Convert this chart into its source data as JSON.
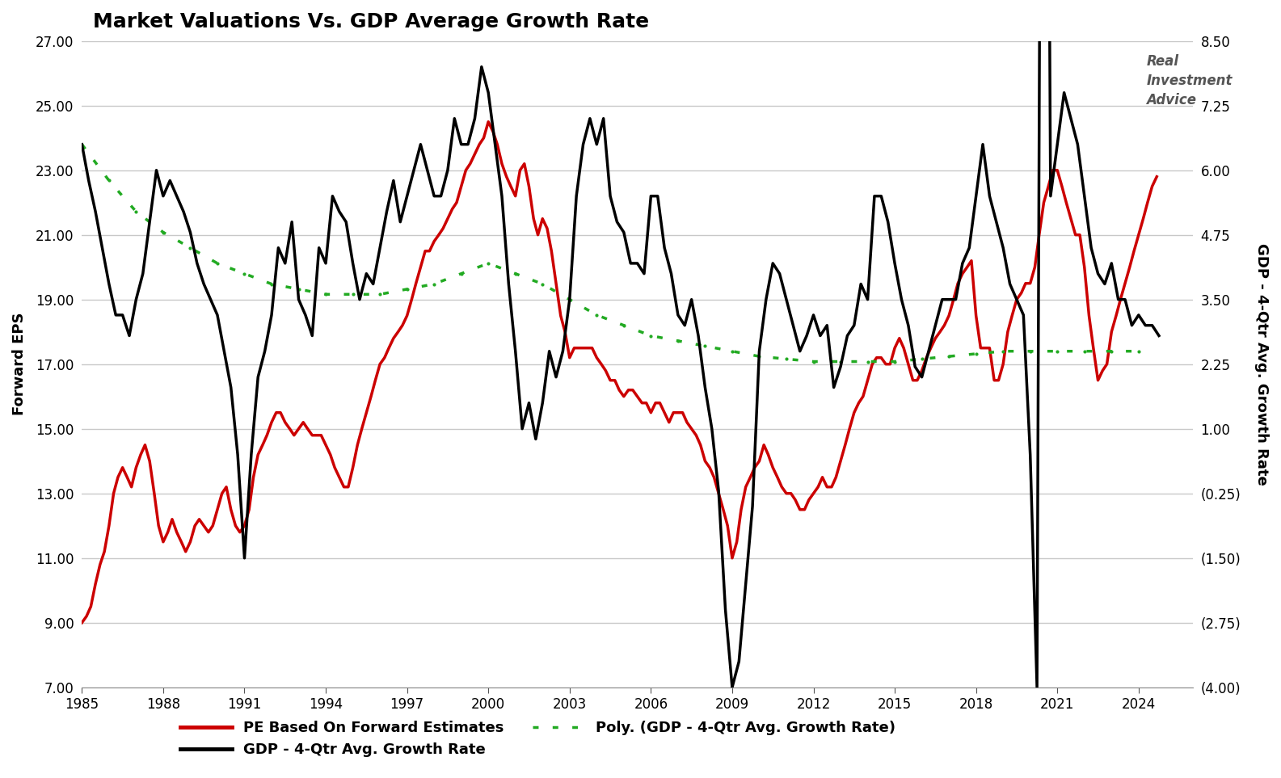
{
  "title": "Market Valuations Vs. GDP Average Growth Rate",
  "ylabel_left": "Forward EPS",
  "ylabel_right": "GDP - 4-Qtr Avg. Growth Rate",
  "xlim": [
    1985,
    2026
  ],
  "ylim_left": [
    7.0,
    27.0
  ],
  "ylim_right": [
    -4.0,
    8.5
  ],
  "yticks_left": [
    7.0,
    9.0,
    11.0,
    13.0,
    15.0,
    17.0,
    19.0,
    21.0,
    23.0,
    25.0,
    27.0
  ],
  "yticks_right": [
    -4.0,
    -2.75,
    -1.5,
    -0.25,
    1.0,
    2.25,
    3.5,
    4.75,
    6.0,
    7.25,
    8.5
  ],
  "ytick_labels_right": [
    "(4.00)",
    "(2.75)",
    "(1.50)",
    "(0.25)",
    "1.00",
    "2.25",
    "3.50",
    "4.75",
    "6.00",
    "7.25",
    "8.50"
  ],
  "xticks": [
    1985,
    1988,
    1991,
    1994,
    1997,
    2000,
    2003,
    2006,
    2009,
    2012,
    2015,
    2018,
    2021,
    2024
  ],
  "background_color": "#ffffff",
  "grid_color": "#c8c8c8",
  "pe_color": "#cc0000",
  "gdp_color": "#000000",
  "poly_color": "#22aa22",
  "legend_entries": [
    "PE Based On Forward Estimates",
    "GDP - 4-Qtr Avg. Growth Rate",
    "Poly. (GDP - 4-Qtr Avg. Growth Rate)"
  ],
  "pe_data": [
    [
      1985.0,
      9.0
    ],
    [
      1985.17,
      9.2
    ],
    [
      1985.33,
      9.5
    ],
    [
      1985.5,
      10.2
    ],
    [
      1985.67,
      10.8
    ],
    [
      1985.83,
      11.2
    ],
    [
      1986.0,
      12.0
    ],
    [
      1986.17,
      13.0
    ],
    [
      1986.33,
      13.5
    ],
    [
      1986.5,
      13.8
    ],
    [
      1986.67,
      13.5
    ],
    [
      1986.83,
      13.2
    ],
    [
      1987.0,
      13.8
    ],
    [
      1987.17,
      14.2
    ],
    [
      1987.33,
      14.5
    ],
    [
      1987.5,
      14.0
    ],
    [
      1987.67,
      13.0
    ],
    [
      1987.83,
      12.0
    ],
    [
      1988.0,
      11.5
    ],
    [
      1988.17,
      11.8
    ],
    [
      1988.33,
      12.2
    ],
    [
      1988.5,
      11.8
    ],
    [
      1988.67,
      11.5
    ],
    [
      1988.83,
      11.2
    ],
    [
      1989.0,
      11.5
    ],
    [
      1989.17,
      12.0
    ],
    [
      1989.33,
      12.2
    ],
    [
      1989.5,
      12.0
    ],
    [
      1989.67,
      11.8
    ],
    [
      1989.83,
      12.0
    ],
    [
      1990.0,
      12.5
    ],
    [
      1990.17,
      13.0
    ],
    [
      1990.33,
      13.2
    ],
    [
      1990.5,
      12.5
    ],
    [
      1990.67,
      12.0
    ],
    [
      1990.83,
      11.8
    ],
    [
      1991.0,
      12.0
    ],
    [
      1991.17,
      12.5
    ],
    [
      1991.33,
      13.5
    ],
    [
      1991.5,
      14.2
    ],
    [
      1991.67,
      14.5
    ],
    [
      1991.83,
      14.8
    ],
    [
      1992.0,
      15.2
    ],
    [
      1992.17,
      15.5
    ],
    [
      1992.33,
      15.5
    ],
    [
      1992.5,
      15.2
    ],
    [
      1992.67,
      15.0
    ],
    [
      1992.83,
      14.8
    ],
    [
      1993.0,
      15.0
    ],
    [
      1993.17,
      15.2
    ],
    [
      1993.33,
      15.0
    ],
    [
      1993.5,
      14.8
    ],
    [
      1993.67,
      14.8
    ],
    [
      1993.83,
      14.8
    ],
    [
      1994.0,
      14.5
    ],
    [
      1994.17,
      14.2
    ],
    [
      1994.33,
      13.8
    ],
    [
      1994.5,
      13.5
    ],
    [
      1994.67,
      13.2
    ],
    [
      1994.83,
      13.2
    ],
    [
      1995.0,
      13.8
    ],
    [
      1995.17,
      14.5
    ],
    [
      1995.33,
      15.0
    ],
    [
      1995.5,
      15.5
    ],
    [
      1995.67,
      16.0
    ],
    [
      1995.83,
      16.5
    ],
    [
      1996.0,
      17.0
    ],
    [
      1996.17,
      17.2
    ],
    [
      1996.33,
      17.5
    ],
    [
      1996.5,
      17.8
    ],
    [
      1996.67,
      18.0
    ],
    [
      1996.83,
      18.2
    ],
    [
      1997.0,
      18.5
    ],
    [
      1997.17,
      19.0
    ],
    [
      1997.33,
      19.5
    ],
    [
      1997.5,
      20.0
    ],
    [
      1997.67,
      20.5
    ],
    [
      1997.83,
      20.5
    ],
    [
      1998.0,
      20.8
    ],
    [
      1998.17,
      21.0
    ],
    [
      1998.33,
      21.2
    ],
    [
      1998.5,
      21.5
    ],
    [
      1998.67,
      21.8
    ],
    [
      1998.83,
      22.0
    ],
    [
      1999.0,
      22.5
    ],
    [
      1999.17,
      23.0
    ],
    [
      1999.33,
      23.2
    ],
    [
      1999.5,
      23.5
    ],
    [
      1999.67,
      23.8
    ],
    [
      1999.83,
      24.0
    ],
    [
      2000.0,
      24.5
    ],
    [
      2000.17,
      24.2
    ],
    [
      2000.33,
      23.8
    ],
    [
      2000.5,
      23.2
    ],
    [
      2000.67,
      22.8
    ],
    [
      2000.83,
      22.5
    ],
    [
      2001.0,
      22.2
    ],
    [
      2001.17,
      23.0
    ],
    [
      2001.33,
      23.2
    ],
    [
      2001.5,
      22.5
    ],
    [
      2001.67,
      21.5
    ],
    [
      2001.83,
      21.0
    ],
    [
      2002.0,
      21.5
    ],
    [
      2002.17,
      21.2
    ],
    [
      2002.33,
      20.5
    ],
    [
      2002.5,
      19.5
    ],
    [
      2002.67,
      18.5
    ],
    [
      2002.83,
      18.0
    ],
    [
      2003.0,
      17.2
    ],
    [
      2003.17,
      17.5
    ],
    [
      2003.33,
      17.5
    ],
    [
      2003.5,
      17.5
    ],
    [
      2003.67,
      17.5
    ],
    [
      2003.83,
      17.5
    ],
    [
      2004.0,
      17.2
    ],
    [
      2004.17,
      17.0
    ],
    [
      2004.33,
      16.8
    ],
    [
      2004.5,
      16.5
    ],
    [
      2004.67,
      16.5
    ],
    [
      2004.83,
      16.2
    ],
    [
      2005.0,
      16.0
    ],
    [
      2005.17,
      16.2
    ],
    [
      2005.33,
      16.2
    ],
    [
      2005.5,
      16.0
    ],
    [
      2005.67,
      15.8
    ],
    [
      2005.83,
      15.8
    ],
    [
      2006.0,
      15.5
    ],
    [
      2006.17,
      15.8
    ],
    [
      2006.33,
      15.8
    ],
    [
      2006.5,
      15.5
    ],
    [
      2006.67,
      15.2
    ],
    [
      2006.83,
      15.5
    ],
    [
      2007.0,
      15.5
    ],
    [
      2007.17,
      15.5
    ],
    [
      2007.33,
      15.2
    ],
    [
      2007.5,
      15.0
    ],
    [
      2007.67,
      14.8
    ],
    [
      2007.83,
      14.5
    ],
    [
      2008.0,
      14.0
    ],
    [
      2008.17,
      13.8
    ],
    [
      2008.33,
      13.5
    ],
    [
      2008.5,
      13.0
    ],
    [
      2008.67,
      12.5
    ],
    [
      2008.83,
      12.0
    ],
    [
      2009.0,
      11.0
    ],
    [
      2009.17,
      11.5
    ],
    [
      2009.33,
      12.5
    ],
    [
      2009.5,
      13.2
    ],
    [
      2009.67,
      13.5
    ],
    [
      2009.83,
      13.8
    ],
    [
      2010.0,
      14.0
    ],
    [
      2010.17,
      14.5
    ],
    [
      2010.33,
      14.2
    ],
    [
      2010.5,
      13.8
    ],
    [
      2010.67,
      13.5
    ],
    [
      2010.83,
      13.2
    ],
    [
      2011.0,
      13.0
    ],
    [
      2011.17,
      13.0
    ],
    [
      2011.33,
      12.8
    ],
    [
      2011.5,
      12.5
    ],
    [
      2011.67,
      12.5
    ],
    [
      2011.83,
      12.8
    ],
    [
      2012.0,
      13.0
    ],
    [
      2012.17,
      13.2
    ],
    [
      2012.33,
      13.5
    ],
    [
      2012.5,
      13.2
    ],
    [
      2012.67,
      13.2
    ],
    [
      2012.83,
      13.5
    ],
    [
      2013.0,
      14.0
    ],
    [
      2013.17,
      14.5
    ],
    [
      2013.33,
      15.0
    ],
    [
      2013.5,
      15.5
    ],
    [
      2013.67,
      15.8
    ],
    [
      2013.83,
      16.0
    ],
    [
      2014.0,
      16.5
    ],
    [
      2014.17,
      17.0
    ],
    [
      2014.33,
      17.2
    ],
    [
      2014.5,
      17.2
    ],
    [
      2014.67,
      17.0
    ],
    [
      2014.83,
      17.0
    ],
    [
      2015.0,
      17.5
    ],
    [
      2015.17,
      17.8
    ],
    [
      2015.33,
      17.5
    ],
    [
      2015.5,
      17.0
    ],
    [
      2015.67,
      16.5
    ],
    [
      2015.83,
      16.5
    ],
    [
      2016.0,
      16.8
    ],
    [
      2016.17,
      17.2
    ],
    [
      2016.33,
      17.5
    ],
    [
      2016.5,
      17.8
    ],
    [
      2016.67,
      18.0
    ],
    [
      2016.83,
      18.2
    ],
    [
      2017.0,
      18.5
    ],
    [
      2017.17,
      19.0
    ],
    [
      2017.33,
      19.5
    ],
    [
      2017.5,
      19.8
    ],
    [
      2017.67,
      20.0
    ],
    [
      2017.83,
      20.2
    ],
    [
      2018.0,
      18.5
    ],
    [
      2018.17,
      17.5
    ],
    [
      2018.33,
      17.5
    ],
    [
      2018.5,
      17.5
    ],
    [
      2018.67,
      16.5
    ],
    [
      2018.83,
      16.5
    ],
    [
      2019.0,
      17.0
    ],
    [
      2019.17,
      18.0
    ],
    [
      2019.33,
      18.5
    ],
    [
      2019.5,
      19.0
    ],
    [
      2019.67,
      19.2
    ],
    [
      2019.83,
      19.5
    ],
    [
      2020.0,
      19.5
    ],
    [
      2020.17,
      20.0
    ],
    [
      2020.33,
      21.0
    ],
    [
      2020.5,
      22.0
    ],
    [
      2020.67,
      22.5
    ],
    [
      2020.83,
      23.0
    ],
    [
      2021.0,
      23.0
    ],
    [
      2021.17,
      22.5
    ],
    [
      2021.33,
      22.0
    ],
    [
      2021.5,
      21.5
    ],
    [
      2021.67,
      21.0
    ],
    [
      2021.83,
      21.0
    ],
    [
      2022.0,
      20.0
    ],
    [
      2022.17,
      18.5
    ],
    [
      2022.33,
      17.5
    ],
    [
      2022.5,
      16.5
    ],
    [
      2022.67,
      16.8
    ],
    [
      2022.83,
      17.0
    ],
    [
      2023.0,
      18.0
    ],
    [
      2023.17,
      18.5
    ],
    [
      2023.33,
      19.0
    ],
    [
      2023.5,
      19.5
    ],
    [
      2023.67,
      20.0
    ],
    [
      2023.83,
      20.5
    ],
    [
      2024.0,
      21.0
    ],
    [
      2024.17,
      21.5
    ],
    [
      2024.33,
      22.0
    ],
    [
      2024.5,
      22.5
    ],
    [
      2024.67,
      22.8
    ]
  ],
  "gdp_data": [
    [
      1985.0,
      6.5
    ],
    [
      1985.25,
      5.8
    ],
    [
      1985.5,
      5.2
    ],
    [
      1985.75,
      4.5
    ],
    [
      1986.0,
      3.8
    ],
    [
      1986.25,
      3.2
    ],
    [
      1986.5,
      3.2
    ],
    [
      1986.75,
      2.8
    ],
    [
      1987.0,
      3.5
    ],
    [
      1987.25,
      4.0
    ],
    [
      1987.5,
      5.0
    ],
    [
      1987.75,
      6.0
    ],
    [
      1988.0,
      5.5
    ],
    [
      1988.25,
      5.8
    ],
    [
      1988.5,
      5.5
    ],
    [
      1988.75,
      5.2
    ],
    [
      1989.0,
      4.8
    ],
    [
      1989.25,
      4.2
    ],
    [
      1989.5,
      3.8
    ],
    [
      1989.75,
      3.5
    ],
    [
      1990.0,
      3.2
    ],
    [
      1990.25,
      2.5
    ],
    [
      1990.5,
      1.8
    ],
    [
      1990.75,
      0.5
    ],
    [
      1991.0,
      -1.5
    ],
    [
      1991.25,
      0.5
    ],
    [
      1991.5,
      2.0
    ],
    [
      1991.75,
      2.5
    ],
    [
      1992.0,
      3.2
    ],
    [
      1992.25,
      4.5
    ],
    [
      1992.5,
      4.2
    ],
    [
      1992.75,
      5.0
    ],
    [
      1993.0,
      3.5
    ],
    [
      1993.25,
      3.2
    ],
    [
      1993.5,
      2.8
    ],
    [
      1993.75,
      4.5
    ],
    [
      1994.0,
      4.2
    ],
    [
      1994.25,
      5.5
    ],
    [
      1994.5,
      5.2
    ],
    [
      1994.75,
      5.0
    ],
    [
      1995.0,
      4.2
    ],
    [
      1995.25,
      3.5
    ],
    [
      1995.5,
      4.0
    ],
    [
      1995.75,
      3.8
    ],
    [
      1996.0,
      4.5
    ],
    [
      1996.25,
      5.2
    ],
    [
      1996.5,
      5.8
    ],
    [
      1996.75,
      5.0
    ],
    [
      1997.0,
      5.5
    ],
    [
      1997.25,
      6.0
    ],
    [
      1997.5,
      6.5
    ],
    [
      1997.75,
      6.0
    ],
    [
      1998.0,
      5.5
    ],
    [
      1998.25,
      5.5
    ],
    [
      1998.5,
      6.0
    ],
    [
      1998.75,
      7.0
    ],
    [
      1999.0,
      6.5
    ],
    [
      1999.25,
      6.5
    ],
    [
      1999.5,
      7.0
    ],
    [
      1999.75,
      8.0
    ],
    [
      2000.0,
      7.5
    ],
    [
      2000.25,
      6.5
    ],
    [
      2000.5,
      5.5
    ],
    [
      2000.75,
      3.8
    ],
    [
      2001.0,
      2.5
    ],
    [
      2001.25,
      1.0
    ],
    [
      2001.5,
      1.5
    ],
    [
      2001.75,
      0.8
    ],
    [
      2002.0,
      1.5
    ],
    [
      2002.25,
      2.5
    ],
    [
      2002.5,
      2.0
    ],
    [
      2002.75,
      2.5
    ],
    [
      2003.0,
      3.5
    ],
    [
      2003.25,
      5.5
    ],
    [
      2003.5,
      6.5
    ],
    [
      2003.75,
      7.0
    ],
    [
      2004.0,
      6.5
    ],
    [
      2004.25,
      7.0
    ],
    [
      2004.5,
      5.5
    ],
    [
      2004.75,
      5.0
    ],
    [
      2005.0,
      4.8
    ],
    [
      2005.25,
      4.2
    ],
    [
      2005.5,
      4.2
    ],
    [
      2005.75,
      4.0
    ],
    [
      2006.0,
      5.5
    ],
    [
      2006.25,
      5.5
    ],
    [
      2006.5,
      4.5
    ],
    [
      2006.75,
      4.0
    ],
    [
      2007.0,
      3.2
    ],
    [
      2007.25,
      3.0
    ],
    [
      2007.5,
      3.5
    ],
    [
      2007.75,
      2.8
    ],
    [
      2008.0,
      1.8
    ],
    [
      2008.25,
      1.0
    ],
    [
      2008.5,
      -0.2
    ],
    [
      2008.75,
      -2.5
    ],
    [
      2009.0,
      -4.0
    ],
    [
      2009.25,
      -3.5
    ],
    [
      2009.5,
      -2.0
    ],
    [
      2009.75,
      -0.5
    ],
    [
      2010.0,
      2.5
    ],
    [
      2010.25,
      3.5
    ],
    [
      2010.5,
      4.2
    ],
    [
      2010.75,
      4.0
    ],
    [
      2011.0,
      3.5
    ],
    [
      2011.25,
      3.0
    ],
    [
      2011.5,
      2.5
    ],
    [
      2011.75,
      2.8
    ],
    [
      2012.0,
      3.2
    ],
    [
      2012.25,
      2.8
    ],
    [
      2012.5,
      3.0
    ],
    [
      2012.75,
      1.8
    ],
    [
      2013.0,
      2.2
    ],
    [
      2013.25,
      2.8
    ],
    [
      2013.5,
      3.0
    ],
    [
      2013.75,
      3.8
    ],
    [
      2014.0,
      3.5
    ],
    [
      2014.25,
      5.5
    ],
    [
      2014.5,
      5.5
    ],
    [
      2014.75,
      5.0
    ],
    [
      2015.0,
      4.2
    ],
    [
      2015.25,
      3.5
    ],
    [
      2015.5,
      3.0
    ],
    [
      2015.75,
      2.2
    ],
    [
      2016.0,
      2.0
    ],
    [
      2016.25,
      2.5
    ],
    [
      2016.5,
      3.0
    ],
    [
      2016.75,
      3.5
    ],
    [
      2017.0,
      3.5
    ],
    [
      2017.25,
      3.5
    ],
    [
      2017.5,
      4.2
    ],
    [
      2017.75,
      4.5
    ],
    [
      2018.0,
      5.5
    ],
    [
      2018.25,
      6.5
    ],
    [
      2018.5,
      5.5
    ],
    [
      2018.75,
      5.0
    ],
    [
      2019.0,
      4.5
    ],
    [
      2019.25,
      3.8
    ],
    [
      2019.5,
      3.5
    ],
    [
      2019.75,
      3.2
    ],
    [
      2020.0,
      0.5
    ],
    [
      2020.25,
      -4.0
    ],
    [
      2020.5,
      30.0
    ],
    [
      2020.75,
      5.5
    ],
    [
      2021.0,
      6.5
    ],
    [
      2021.25,
      7.5
    ],
    [
      2021.5,
      7.0
    ],
    [
      2021.75,
      6.5
    ],
    [
      2022.0,
      5.5
    ],
    [
      2022.25,
      4.5
    ],
    [
      2022.5,
      4.0
    ],
    [
      2022.75,
      3.8
    ],
    [
      2023.0,
      4.2
    ],
    [
      2023.25,
      3.5
    ],
    [
      2023.5,
      3.5
    ],
    [
      2023.75,
      3.0
    ],
    [
      2024.0,
      3.2
    ],
    [
      2024.25,
      3.0
    ],
    [
      2024.5,
      3.0
    ],
    [
      2024.75,
      2.8
    ]
  ],
  "poly_data": [
    [
      1985.0,
      6.5
    ],
    [
      1986.0,
      5.8
    ],
    [
      1987.0,
      5.2
    ],
    [
      1988.0,
      4.8
    ],
    [
      1989.0,
      4.5
    ],
    [
      1990.0,
      4.2
    ],
    [
      1991.0,
      4.0
    ],
    [
      1992.0,
      3.8
    ],
    [
      1993.0,
      3.7
    ],
    [
      1994.0,
      3.6
    ],
    [
      1995.0,
      3.6
    ],
    [
      1996.0,
      3.6
    ],
    [
      1997.0,
      3.7
    ],
    [
      1998.0,
      3.8
    ],
    [
      1999.0,
      4.0
    ],
    [
      2000.0,
      4.2
    ],
    [
      2001.0,
      4.0
    ],
    [
      2002.0,
      3.8
    ],
    [
      2003.0,
      3.5
    ],
    [
      2004.0,
      3.2
    ],
    [
      2005.0,
      3.0
    ],
    [
      2006.0,
      2.8
    ],
    [
      2007.0,
      2.7
    ],
    [
      2008.0,
      2.6
    ],
    [
      2009.0,
      2.5
    ],
    [
      2010.0,
      2.4
    ],
    [
      2011.0,
      2.35
    ],
    [
      2012.0,
      2.3
    ],
    [
      2013.0,
      2.3
    ],
    [
      2014.0,
      2.3
    ],
    [
      2015.0,
      2.3
    ],
    [
      2016.0,
      2.35
    ],
    [
      2017.0,
      2.4
    ],
    [
      2018.0,
      2.45
    ],
    [
      2019.0,
      2.5
    ],
    [
      2020.0,
      2.5
    ],
    [
      2021.0,
      2.5
    ],
    [
      2022.0,
      2.5
    ],
    [
      2023.0,
      2.5
    ],
    [
      2024.0,
      2.5
    ]
  ]
}
